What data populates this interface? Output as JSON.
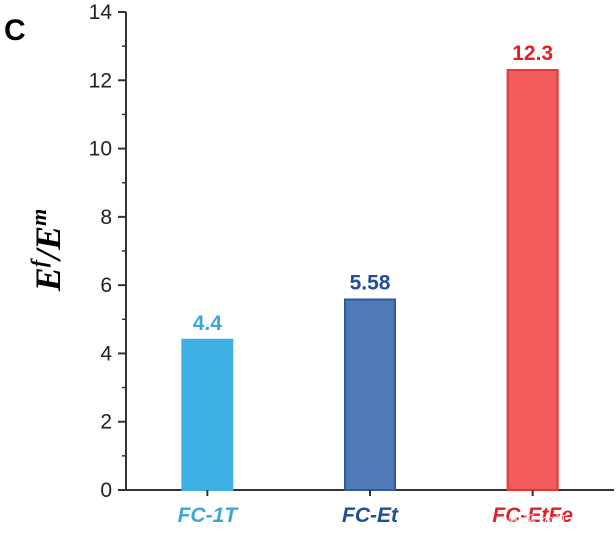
{
  "panel_label": "C",
  "watermark": "知乎 @江大三三",
  "chart_data": {
    "type": "bar",
    "categories": [
      "FC-1T",
      "FC-Et",
      "FC-EtFe"
    ],
    "values": [
      4.4,
      5.58,
      12.3
    ],
    "value_labels": [
      "4.4",
      "5.58",
      "12.3"
    ],
    "colors": [
      "#3fb0e6",
      "#4f7ab5",
      "#f25c5c"
    ],
    "edge_colors": [
      "#3fb0e6",
      "#2f5aa0",
      "#e83434"
    ],
    "label_colors": [
      "#3aa6dc",
      "#1f4e9a",
      "#e41e26"
    ],
    "title": "",
    "ylabel": {
      "base": "E",
      "sup1": "f",
      "sep": "/E",
      "sup2": "m"
    },
    "ylim": [
      0,
      14
    ],
    "yticks": [
      "0",
      "2",
      "4",
      "6",
      "8",
      "10",
      "12",
      "14"
    ],
    "grid": false
  }
}
